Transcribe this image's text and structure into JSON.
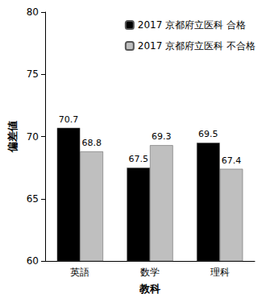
{
  "chart_data": {
    "type": "bar",
    "categories": [
      "英語",
      "数学",
      "理科"
    ],
    "series": [
      {
        "name": "2017 京都府立医科 合格",
        "color": "#000000",
        "values": [
          70.7,
          67.5,
          69.5
        ]
      },
      {
        "name": "2017 京都府立医科 不合格",
        "color": "#bfbfbf",
        "values": [
          68.8,
          69.3,
          67.4
        ]
      }
    ],
    "x_label": "教科",
    "y_label": "偏差値",
    "ylim": [
      60,
      80
    ],
    "yticks": [
      60,
      65,
      70,
      75,
      80
    ],
    "grid": false,
    "legend": "upper right",
    "data_labels": true
  }
}
